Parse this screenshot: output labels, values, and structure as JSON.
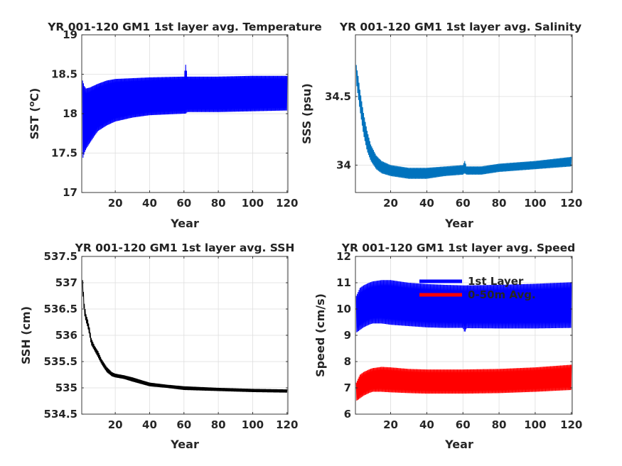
{
  "chart_data": [
    {
      "type": "line",
      "title": "YR 001-120 GM1 1st layer avg. Temperature",
      "xlabel": "Year",
      "ylabel": "SST (",
      "ylabel_deg": "o",
      "ylabel_tail": "C)",
      "xlim": [
        0.5,
        120.5
      ],
      "ylim": [
        17,
        19
      ],
      "xticks": [
        "20",
        "40",
        "60",
        "80",
        "100",
        "120"
      ],
      "yticks": [
        "17",
        "17.5",
        "18",
        "18.5",
        "19"
      ],
      "xtick_values": [
        20,
        40,
        60,
        80,
        100,
        120
      ],
      "ytick_values": [
        17,
        17.5,
        18,
        18.5,
        19
      ],
      "grid": true,
      "series": [
        {
          "color": "#0000ff",
          "x": [
            1,
            2,
            3,
            5,
            8,
            10,
            15,
            20,
            30,
            40,
            60,
            61,
            62,
            80,
            100,
            120
          ],
          "upper": [
            18.42,
            18.35,
            18.32,
            18.33,
            18.36,
            18.38,
            18.42,
            18.44,
            18.45,
            18.46,
            18.47,
            18.62,
            18.47,
            18.47,
            18.48,
            18.48
          ],
          "lower": [
            17.42,
            17.5,
            17.55,
            17.62,
            17.72,
            17.78,
            17.85,
            17.9,
            17.95,
            17.98,
            18.0,
            18.0,
            18.02,
            18.02,
            18.03,
            18.04
          ]
        }
      ]
    },
    {
      "type": "line",
      "title": "YR 001-120 GM1 1st layer avg. Salinity",
      "xlabel": "Year",
      "ylabel": "SSS (psu)",
      "xlim": [
        0.5,
        120.5
      ],
      "ylim": [
        33.8,
        34.95
      ],
      "xticks": [
        "20",
        "40",
        "60",
        "80",
        "100",
        "120"
      ],
      "yticks": [
        "34",
        "34.5"
      ],
      "xtick_values": [
        20,
        40,
        60,
        80,
        100,
        120
      ],
      "ytick_values": [
        34,
        34.5
      ],
      "grid": true,
      "series": [
        {
          "color": "#0072bd",
          "x": [
            1,
            2,
            3,
            5,
            7,
            9,
            12,
            15,
            20,
            30,
            40,
            50,
            60,
            61,
            62,
            70,
            80,
            100,
            120
          ],
          "upper": [
            34.73,
            34.65,
            34.55,
            34.38,
            34.25,
            34.15,
            34.07,
            34.03,
            34.0,
            33.98,
            33.98,
            33.99,
            34.0,
            34.03,
            33.99,
            33.99,
            34.01,
            34.03,
            34.06
          ],
          "lower": [
            34.6,
            34.5,
            34.4,
            34.22,
            34.1,
            34.03,
            33.97,
            33.94,
            33.92,
            33.9,
            33.9,
            33.92,
            33.93,
            33.94,
            33.93,
            33.93,
            33.95,
            33.97,
            33.99
          ]
        }
      ]
    },
    {
      "type": "line",
      "title": "YR 001-120 GM1 1st layer avg. SSH",
      "xlabel": "Year",
      "ylabel": "SSH (cm)",
      "xlim": [
        0.5,
        120.5
      ],
      "ylim": [
        534.5,
        537.5
      ],
      "xticks": [
        "20",
        "40",
        "60",
        "80",
        "100",
        "120"
      ],
      "yticks": [
        "534.5",
        "535",
        "535.5",
        "536",
        "536.5",
        "537",
        "537.5"
      ],
      "xtick_values": [
        20,
        40,
        60,
        80,
        100,
        120
      ],
      "ytick_values": [
        534.5,
        535,
        535.5,
        536,
        536.5,
        537,
        537.5
      ],
      "grid": true,
      "series": [
        {
          "color": "#000000",
          "x": [
            1,
            2,
            3,
            4,
            5,
            6,
            8,
            10,
            12,
            15,
            18,
            20,
            25,
            30,
            40,
            50,
            60,
            80,
            100,
            120
          ],
          "upper": [
            537.05,
            536.6,
            536.4,
            536.3,
            536.15,
            535.95,
            535.8,
            535.7,
            535.55,
            535.4,
            535.3,
            535.27,
            535.24,
            535.2,
            535.1,
            535.06,
            535.03,
            535.0,
            534.98,
            534.97
          ],
          "lower": [
            536.85,
            536.4,
            536.25,
            536.15,
            536.0,
            535.82,
            535.7,
            535.58,
            535.45,
            535.3,
            535.22,
            535.2,
            535.17,
            535.12,
            535.03,
            535.0,
            534.96,
            534.94,
            534.92,
            534.91
          ]
        }
      ]
    },
    {
      "type": "line",
      "title": "YR 001-120 GM1 1st layer avg. Speed",
      "xlabel": "Year",
      "ylabel": "Speed (cm/s)",
      "xlim": [
        0.5,
        120.5
      ],
      "ylim": [
        6,
        12
      ],
      "xticks": [
        "20",
        "40",
        "60",
        "80",
        "100",
        "120"
      ],
      "yticks": [
        "6",
        "7",
        "8",
        "9",
        "10",
        "11",
        "12"
      ],
      "xtick_values": [
        20,
        40,
        60,
        80,
        100,
        120
      ],
      "ytick_values": [
        6,
        7,
        8,
        9,
        10,
        11,
        12
      ],
      "grid": true,
      "legend": "top-right",
      "series": [
        {
          "name": "1st Layer",
          "color": "#0000ff",
          "x": [
            1,
            3,
            5,
            8,
            10,
            15,
            20,
            30,
            40,
            50,
            60,
            61,
            62,
            80,
            100,
            120
          ],
          "upper": [
            10.5,
            10.8,
            10.9,
            11.0,
            11.05,
            11.1,
            11.1,
            11.0,
            10.95,
            10.92,
            10.9,
            10.9,
            10.9,
            10.92,
            10.96,
            11.02
          ],
          "lower": [
            9.1,
            9.2,
            9.3,
            9.4,
            9.45,
            9.45,
            9.4,
            9.35,
            9.3,
            9.28,
            9.28,
            9.1,
            9.27,
            9.26,
            9.26,
            9.28
          ]
        },
        {
          "name": "0-50m Avg.",
          "color": "#ff0000",
          "x": [
            1,
            3,
            5,
            8,
            10,
            15,
            20,
            30,
            40,
            50,
            60,
            80,
            100,
            120
          ],
          "upper": [
            7.2,
            7.5,
            7.6,
            7.7,
            7.75,
            7.8,
            7.78,
            7.72,
            7.7,
            7.7,
            7.7,
            7.72,
            7.78,
            7.88
          ],
          "lower": [
            6.5,
            6.6,
            6.7,
            6.8,
            6.85,
            6.85,
            6.83,
            6.8,
            6.78,
            6.78,
            6.78,
            6.8,
            6.85,
            6.92
          ]
        }
      ]
    }
  ]
}
